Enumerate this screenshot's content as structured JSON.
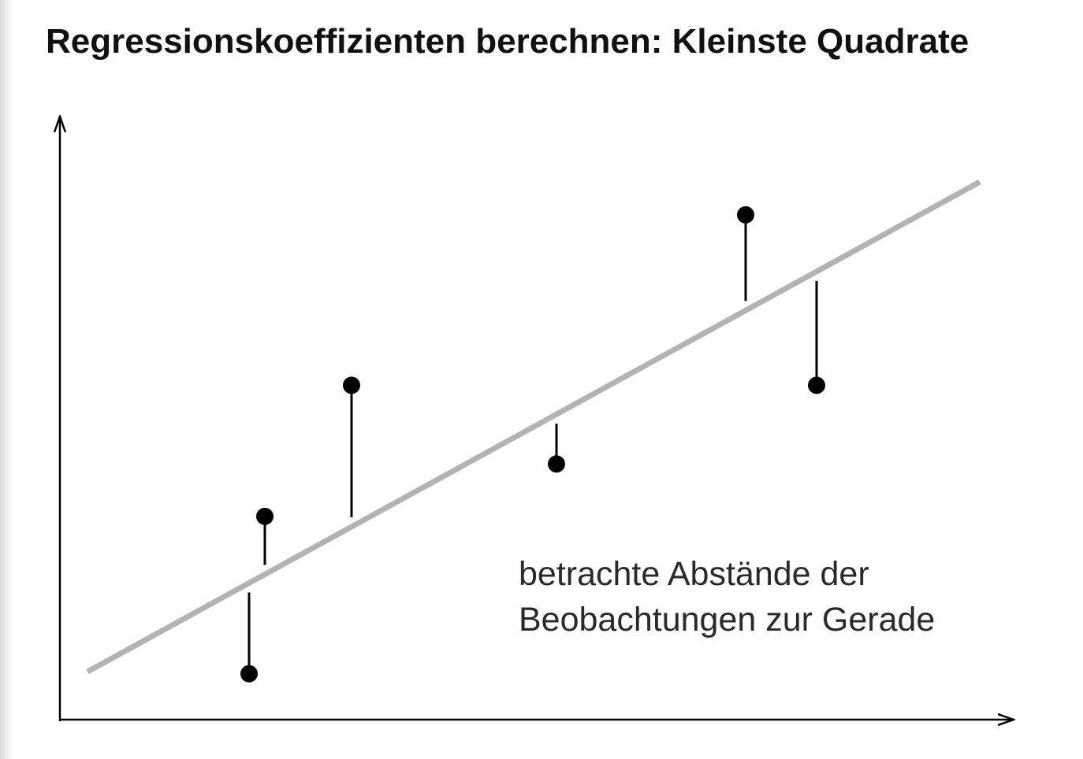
{
  "title": "Regressionskoeffizienten berechnen: Kleinste Quadrate",
  "annotation": {
    "line1": "betrachte Abstände der",
    "line2": "Beobachtungen zur Gerade"
  },
  "colors": {
    "regression_line": "#b3b3b3",
    "points": "#000000",
    "residuals": "#000000",
    "axes": "#000000"
  },
  "chart_data": {
    "type": "scatter",
    "x_range": [
      0,
      12
    ],
    "y_range": [
      0,
      9.2
    ],
    "regression_line": {
      "intercept": 0.5,
      "slope": 0.66
    },
    "points": [
      {
        "x": 2.4,
        "y": 0.7
      },
      {
        "x": 2.6,
        "y": 3.1
      },
      {
        "x": 3.7,
        "y": 5.1
      },
      {
        "x": 6.3,
        "y": 3.9
      },
      {
        "x": 8.7,
        "y": 7.7
      },
      {
        "x": 9.6,
        "y": 5.1
      }
    ]
  }
}
